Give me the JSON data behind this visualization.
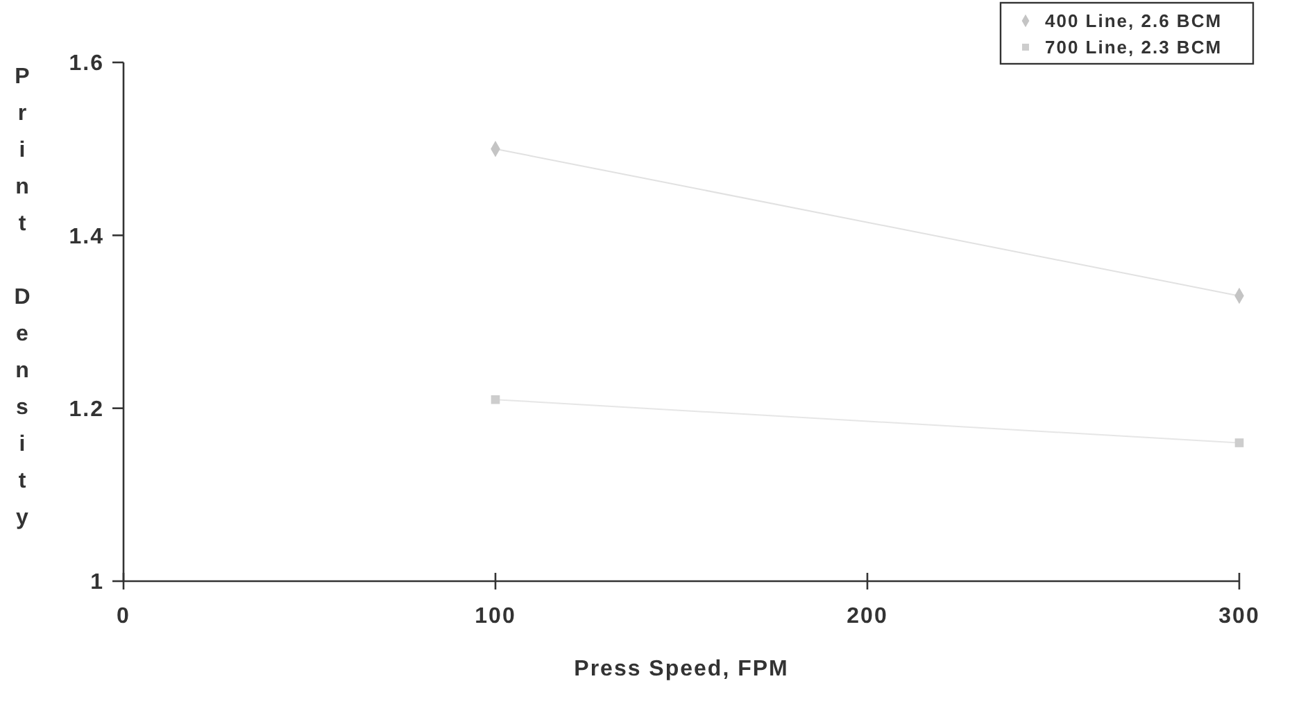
{
  "chart_data": {
    "type": "line",
    "xlabel": "Press Speed, FPM",
    "ylabel": "Print Density",
    "xlim": [
      0,
      300
    ],
    "xticks": [
      0,
      100,
      200,
      300
    ],
    "ylim": [
      1,
      1.6
    ],
    "yticks": [
      1,
      1.2,
      1.4,
      1.6
    ],
    "legend": "top right",
    "grid": false,
    "x": [
      100,
      300
    ],
    "series": [
      {
        "name": "400 Line, 2.6 BCM",
        "color": "#c4c4c4",
        "values": [
          1.5,
          1.33
        ],
        "marker": "diamond"
      },
      {
        "name": "700 Line, 2.3 BCM",
        "color": "#cdcdcd",
        "values": [
          1.21,
          1.16
        ],
        "marker": "square"
      }
    ]
  }
}
